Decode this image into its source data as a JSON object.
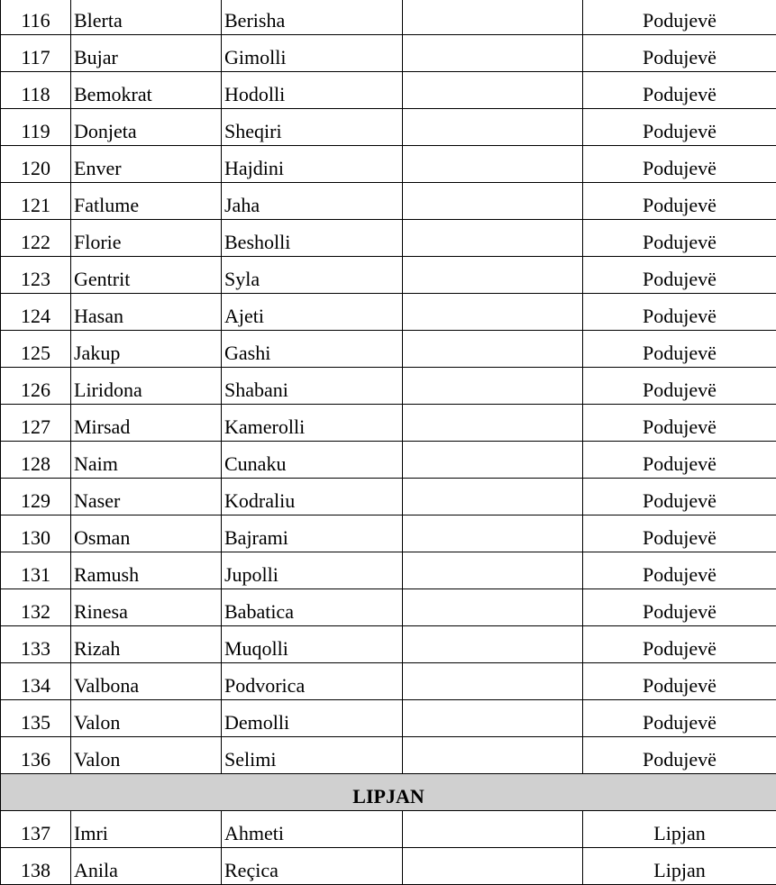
{
  "rows": [
    {
      "type": "row",
      "num": "116",
      "first": "Blerta",
      "last": "Berisha",
      "extra": "",
      "city": "Podujevë"
    },
    {
      "type": "row",
      "num": "117",
      "first": "Bujar",
      "last": "Gimolli",
      "extra": "",
      "city": "Podujevë"
    },
    {
      "type": "row",
      "num": "118",
      "first": "Bemokrat",
      "last": "Hodolli",
      "extra": "",
      "city": "Podujevë"
    },
    {
      "type": "row",
      "num": "119",
      "first": "Donjeta",
      "last": "Sheqiri",
      "extra": "",
      "city": "Podujevë"
    },
    {
      "type": "row",
      "num": "120",
      "first": "Enver",
      "last": "Hajdini",
      "extra": "",
      "city": "Podujevë"
    },
    {
      "type": "row",
      "num": "121",
      "first": "Fatlume",
      "last": "Jaha",
      "extra": "",
      "city": "Podujevë"
    },
    {
      "type": "row",
      "num": "122",
      "first": "Florie",
      "last": "Besholli",
      "extra": "",
      "city": "Podujevë"
    },
    {
      "type": "row",
      "num": "123",
      "first": "Gentrit",
      "last": "Syla",
      "extra": "",
      "city": "Podujevë"
    },
    {
      "type": "row",
      "num": "124",
      "first": "Hasan",
      "last": "Ajeti",
      "extra": "",
      "city": "Podujevë"
    },
    {
      "type": "row",
      "num": "125",
      "first": "Jakup",
      "last": "Gashi",
      "extra": "",
      "city": "Podujevë"
    },
    {
      "type": "row",
      "num": "126",
      "first": "Liridona",
      "last": "Shabani",
      "extra": "",
      "city": "Podujevë"
    },
    {
      "type": "row",
      "num": "127",
      "first": "Mirsad",
      "last": "Kamerolli",
      "extra": "",
      "city": "Podujevë"
    },
    {
      "type": "row",
      "num": "128",
      "first": "Naim",
      "last": "Cunaku",
      "extra": "",
      "city": "Podujevë"
    },
    {
      "type": "row",
      "num": "129",
      "first": "Naser",
      "last": "Kodraliu",
      "extra": "",
      "city": "Podujevë"
    },
    {
      "type": "row",
      "num": "130",
      "first": "Osman",
      "last": "Bajrami",
      "extra": "",
      "city": "Podujevë"
    },
    {
      "type": "row",
      "num": "131",
      "first": "Ramush",
      "last": "Jupolli",
      "extra": "",
      "city": "Podujevë"
    },
    {
      "type": "row",
      "num": "132",
      "first": "Rinesa",
      "last": "Babatica",
      "extra": "",
      "city": "Podujevë"
    },
    {
      "type": "row",
      "num": "133",
      "first": "Rizah",
      "last": "Muqolli",
      "extra": "",
      "city": "Podujevë"
    },
    {
      "type": "row",
      "num": "134",
      "first": "Valbona",
      "last": "Podvorica",
      "extra": "",
      "city": "Podujevë"
    },
    {
      "type": "row",
      "num": "135",
      "first": "Valon",
      "last": "Demolli",
      "extra": "",
      "city": "Podujevë"
    },
    {
      "type": "row",
      "num": "136",
      "first": "Valon",
      "last": "Selimi",
      "extra": "",
      "city": "Podujevë"
    },
    {
      "type": "section",
      "title": "LIPJAN"
    },
    {
      "type": "row",
      "num": "137",
      "first": "Imri",
      "last": "Ahmeti",
      "extra": "",
      "city": "Lipjan"
    },
    {
      "type": "row",
      "num": "138",
      "first": "Anila",
      "last": "Reçica",
      "extra": "",
      "city": "Lipjan"
    }
  ],
  "colors": {
    "section_bg": "#d0d0d0",
    "border": "#000000"
  }
}
